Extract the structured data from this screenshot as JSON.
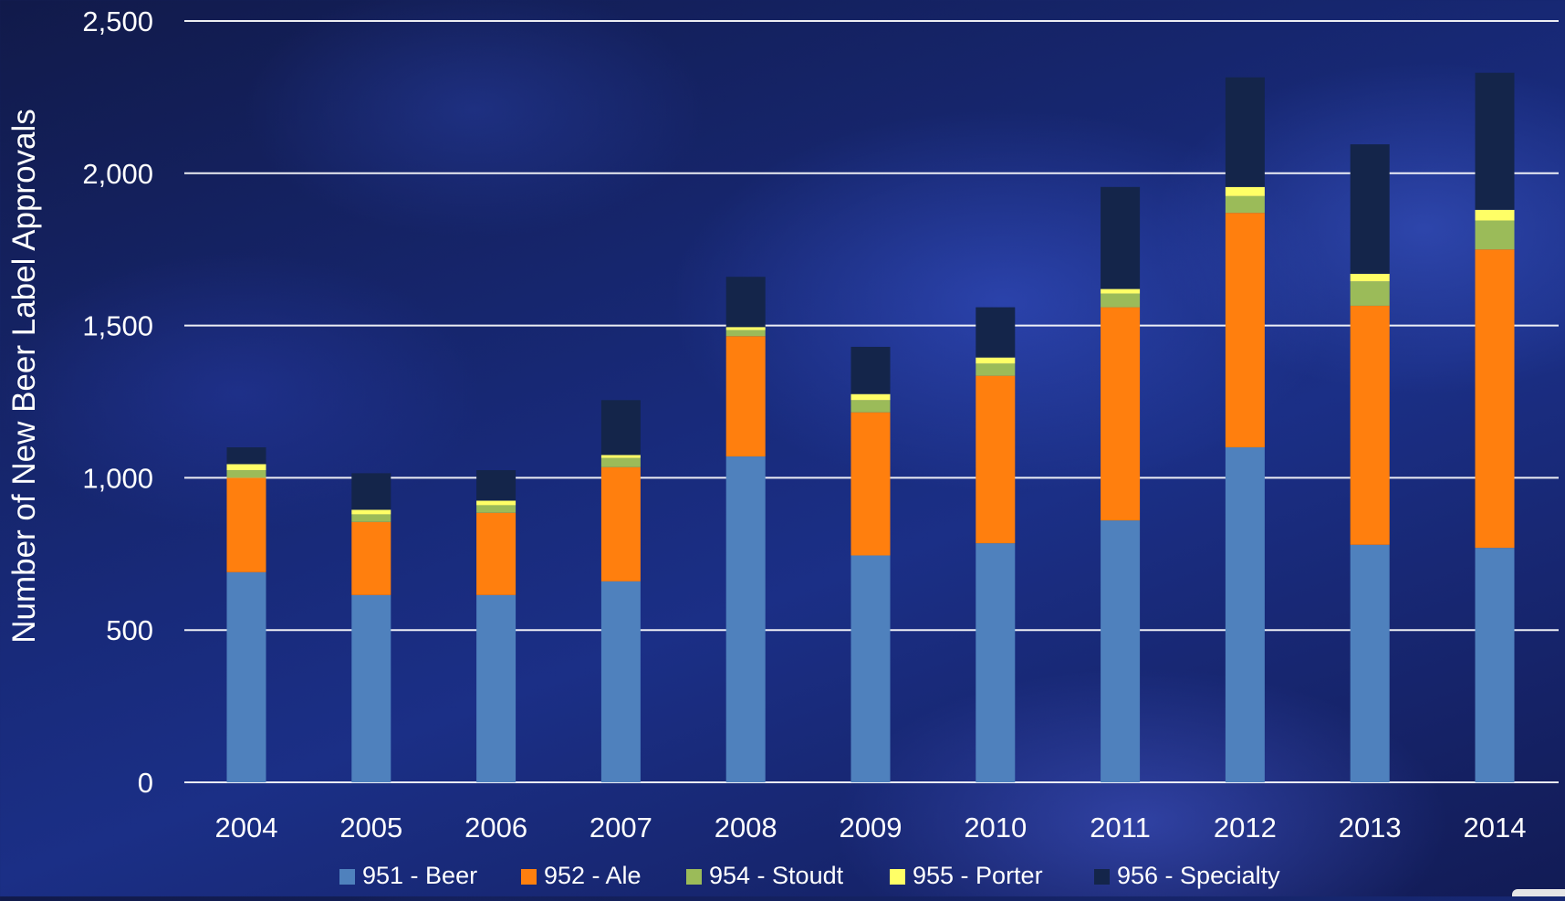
{
  "chart_data": {
    "type": "bar",
    "stacked": true,
    "categories": [
      "2004",
      "2005",
      "2006",
      "2007",
      "2008",
      "2009",
      "2010",
      "2011",
      "2012",
      "2013",
      "2014"
    ],
    "series": [
      {
        "name": "951 - Beer",
        "color": "#4f81bd",
        "values": [
          690,
          615,
          615,
          660,
          1070,
          745,
          785,
          860,
          1100,
          780,
          770
        ]
      },
      {
        "name": "952 - Ale",
        "color": "#ff7f0e",
        "values": [
          310,
          240,
          270,
          375,
          395,
          470,
          550,
          700,
          770,
          785,
          980
        ]
      },
      {
        "name": "954 - Stoudt",
        "color": "#9bbb59",
        "values": [
          25,
          25,
          25,
          30,
          20,
          40,
          40,
          45,
          55,
          80,
          95
        ]
      },
      {
        "name": "955 - Porter",
        "color": "#ffff66",
        "values": [
          20,
          15,
          15,
          10,
          10,
          20,
          20,
          15,
          30,
          25,
          35
        ]
      },
      {
        "name": "956 - Specialty",
        "color": "#14254a",
        "values": [
          55,
          120,
          100,
          180,
          165,
          155,
          165,
          335,
          360,
          425,
          450
        ]
      }
    ],
    "ylim": [
      0,
      2500
    ],
    "yticks": [
      0,
      500,
      1000,
      1500,
      2000,
      2500
    ],
    "ytick_labels": [
      "0",
      "500",
      "1,000",
      "1,500",
      "2,000",
      "2,500"
    ],
    "title": "",
    "xlabel": "",
    "ylabel": "Number of New Beer Label Approvals",
    "grid": true,
    "legend_position": "bottom"
  }
}
